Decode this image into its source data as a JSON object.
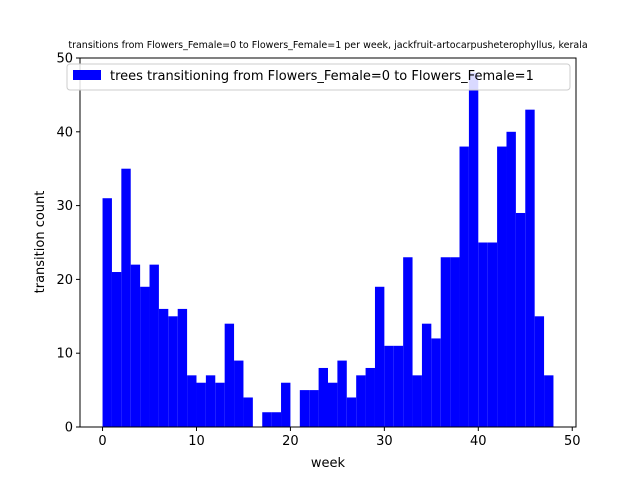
{
  "chart_data": {
    "type": "bar",
    "title": "transitions from Flowers_Female=0 to Flowers_Female=1 per week, jackfruit-artocarpusheterophyllus, kerala",
    "xlabel": "week",
    "ylabel": "transition count",
    "xlim": [
      -2.4,
      50.4
    ],
    "ylim": [
      0,
      50
    ],
    "xticks": [
      0,
      10,
      20,
      30,
      40,
      50
    ],
    "yticks": [
      0,
      10,
      20,
      30,
      40,
      50
    ],
    "bar_width": 1,
    "bar_color": "#0000ff",
    "legend_placement": "top",
    "series": [
      {
        "name": "trees transitioning from Flowers_Female=0 to Flowers_Female=1",
        "x": [
          0,
          1,
          2,
          3,
          4,
          5,
          6,
          7,
          8,
          9,
          10,
          11,
          12,
          13,
          14,
          15,
          16,
          17,
          18,
          19,
          20,
          21,
          22,
          23,
          24,
          25,
          26,
          27,
          28,
          29,
          30,
          31,
          32,
          33,
          34,
          35,
          36,
          37,
          38,
          39,
          40,
          41,
          42,
          43,
          44,
          45,
          46,
          47
        ],
        "values": [
          31,
          21,
          35,
          22,
          19,
          22,
          16,
          15,
          16,
          7,
          6,
          7,
          6,
          14,
          9,
          4,
          0,
          2,
          2,
          6,
          0,
          5,
          5,
          8,
          6,
          9,
          4,
          7,
          8,
          19,
          11,
          11,
          23,
          7,
          14,
          12,
          23,
          23,
          38,
          48,
          25,
          25,
          38,
          40,
          29,
          43,
          15,
          7
        ]
      }
    ]
  }
}
